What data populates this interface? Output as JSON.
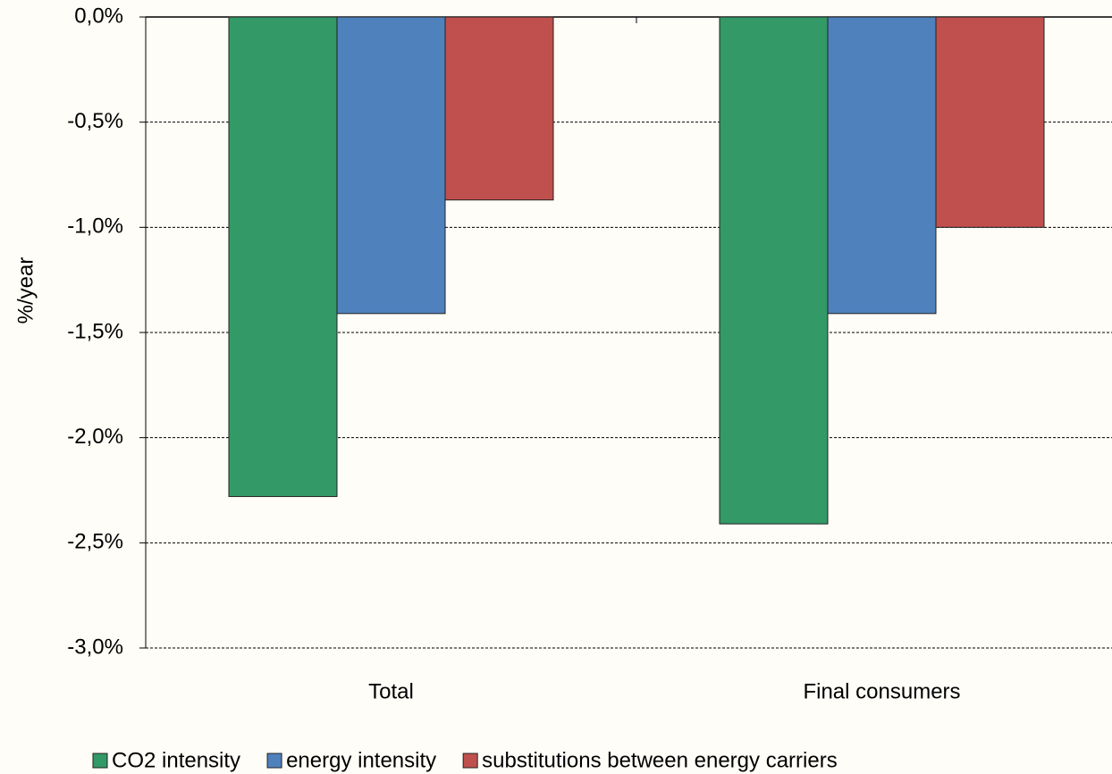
{
  "chart_data": {
    "type": "bar",
    "y_label": "%/year",
    "categories": [
      "Total",
      "Final consumers"
    ],
    "series": [
      {
        "name": "CO2 intensity",
        "color": "#339966",
        "values": [
          -2.28,
          -2.41
        ]
      },
      {
        "name": "energy intensity",
        "color": "#4f81bd",
        "values": [
          -1.41,
          -1.41
        ]
      },
      {
        "name": "substitutions between energy carriers",
        "color": "#c0504d",
        "values": [
          -0.87,
          -1.0
        ]
      }
    ],
    "ylim": [
      -3.0,
      0
    ],
    "yticks": [
      {
        "value": 0,
        "label": "0,0%"
      },
      {
        "value": -0.5,
        "label": "-0,5%"
      },
      {
        "value": -1.0,
        "label": "-1,0%"
      },
      {
        "value": -1.5,
        "label": "-1,5%"
      },
      {
        "value": -2.0,
        "label": "-2,0%"
      },
      {
        "value": -2.5,
        "label": "-2,5%"
      },
      {
        "value": -3.0,
        "label": "-3,0%"
      }
    ],
    "grid": true,
    "legend": "bottom"
  }
}
